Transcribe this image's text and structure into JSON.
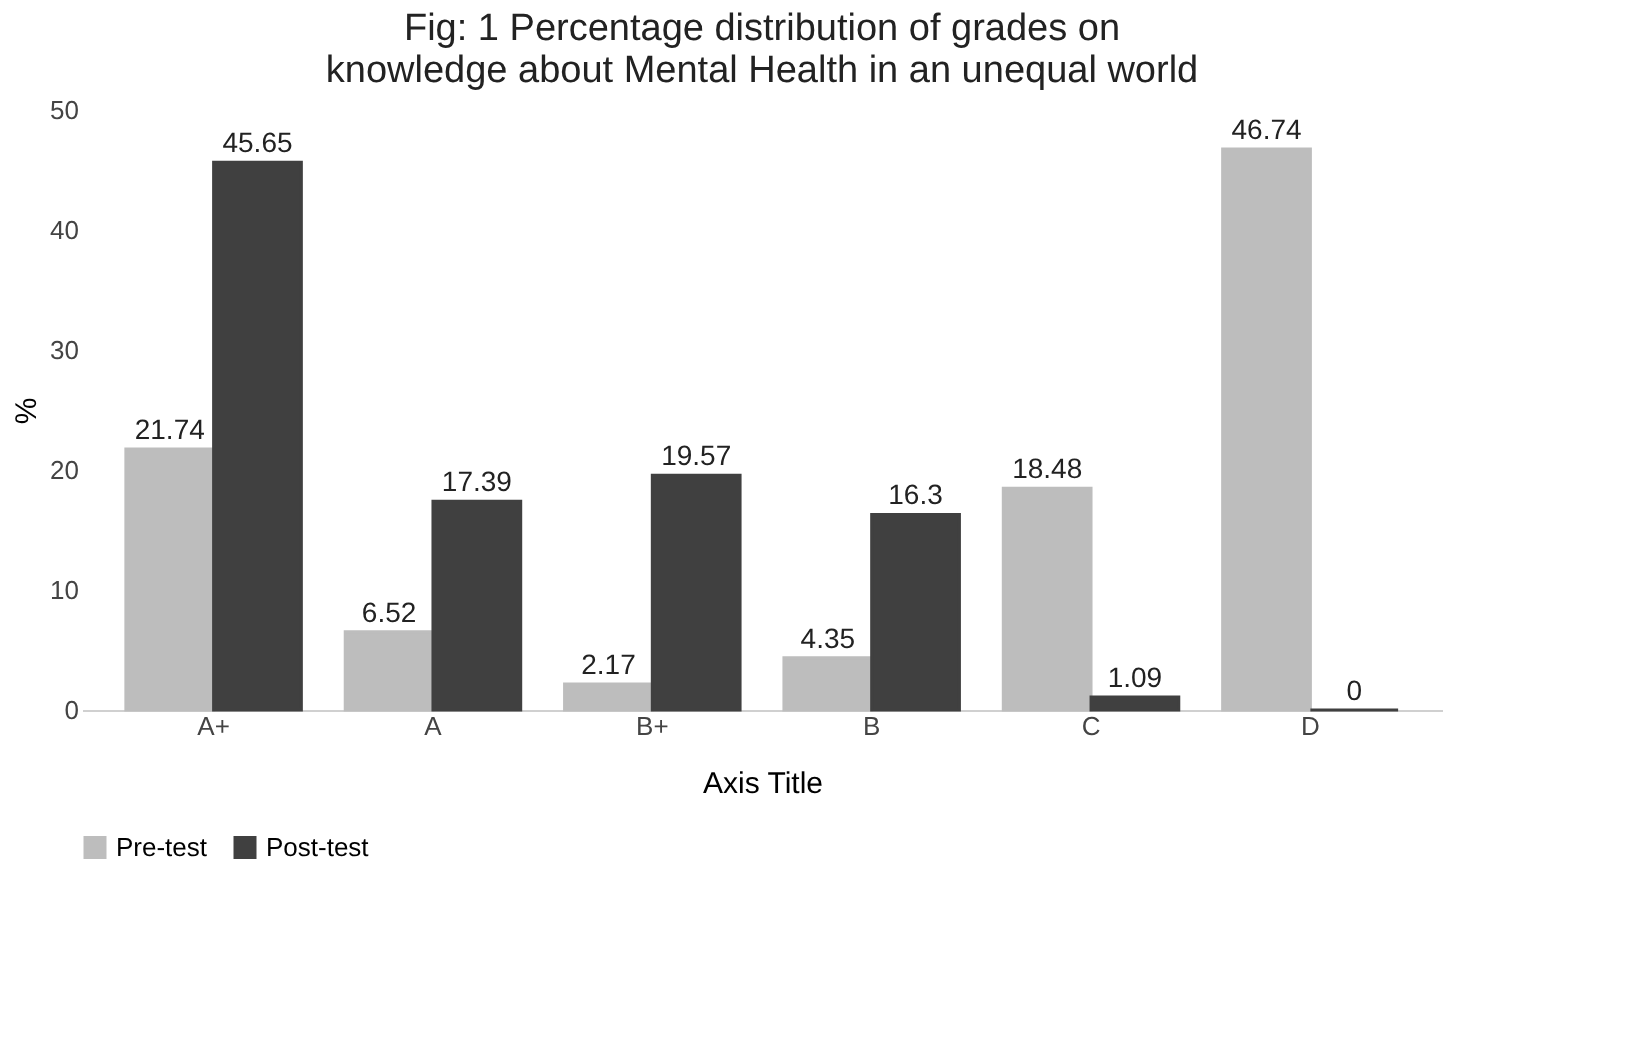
{
  "chart_data": {
    "type": "bar",
    "title": "Fig: 1 Percentage distribution of grades on knowledge about Mental Health in an unequal world",
    "xlabel": "Axis Title",
    "ylabel": "%",
    "categories": [
      "A+",
      "A",
      "B+",
      "B",
      "C",
      "D"
    ],
    "series": [
      {
        "name": "Pre-test",
        "color": "#bdbdbd",
        "values": [
          21.74,
          6.52,
          2.17,
          4.35,
          18.48,
          46.74
        ]
      },
      {
        "name": "Post-test",
        "color": "#404040",
        "values": [
          45.65,
          17.39,
          19.57,
          16.3,
          1.09,
          0
        ]
      }
    ],
    "ylim": [
      0,
      50
    ],
    "yticks": [
      0,
      10,
      20,
      30,
      40,
      50
    ],
    "grid": false,
    "legend": "bottom",
    "data_labels": true
  }
}
